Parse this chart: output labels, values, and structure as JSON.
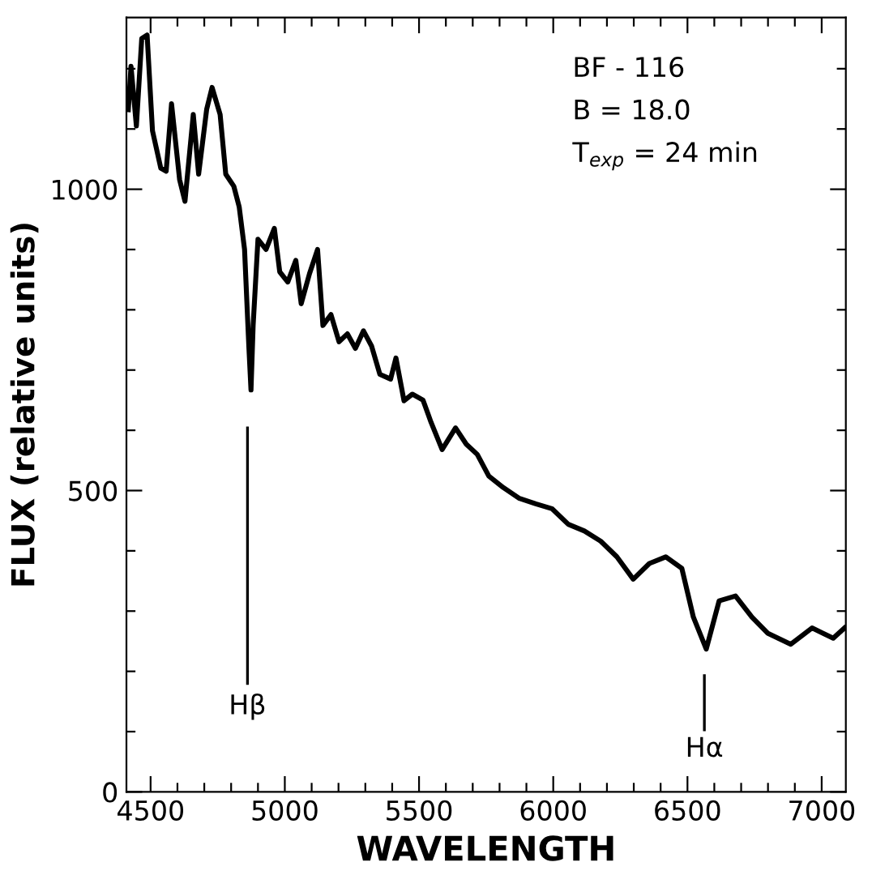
{
  "chart_data": {
    "type": "line",
    "xlabel": "WAVELENGTH",
    "ylabel": "FLUX (relative units)",
    "x": [
      4417,
      4427,
      4447,
      4467,
      4487,
      4507,
      4538,
      4558,
      4578,
      4608,
      4628,
      4659,
      4679,
      4709,
      4729,
      4759,
      4780,
      4810,
      4830,
      4850,
      4866,
      4874,
      4882,
      4900,
      4930,
      4961,
      4981,
      5011,
      5041,
      5061,
      5092,
      5122,
      5142,
      5172,
      5202,
      5233,
      5263,
      5293,
      5323,
      5354,
      5394,
      5414,
      5444,
      5475,
      5515,
      5545,
      5586,
      5636,
      5676,
      5717,
      5760,
      5814,
      5874,
      5935,
      5995,
      6056,
      6116,
      6177,
      6237,
      6298,
      6358,
      6419,
      6479,
      6522,
      6570,
      6618,
      6679,
      6740,
      6800,
      6885,
      6964,
      7043,
      7085
    ],
    "series": [
      {
        "color": "#000000",
        "values": [
          1132,
          1204,
          1105,
          1250,
          1256,
          1097,
          1035,
          1030,
          1142,
          1016,
          980,
          1124,
          1025,
          1133,
          1169,
          1124,
          1025,
          1005,
          971,
          900,
          739,
          667,
          774,
          917,
          900,
          935,
          863,
          846,
          882,
          810,
          860,
          900,
          774,
          792,
          747,
          760,
          736,
          765,
          740,
          693,
          685,
          720,
          649,
          660,
          650,
          613,
          568,
          604,
          577,
          560,
          524,
          505,
          487,
          478,
          470,
          444,
          433,
          416,
          390,
          353,
          379,
          390,
          371,
          290,
          237,
          317,
          325,
          290,
          263,
          245,
          272,
          255,
          272
        ]
      }
    ],
    "xlim": [
      4410,
      7090
    ],
    "ylim": [
      0,
      1285
    ],
    "xticks": [
      4500,
      {
        "value": 4600,
        "label": null
      },
      {
        "value": 4700,
        "label": null
      },
      {
        "value": 4800,
        "label": null
      },
      {
        "value": 4900,
        "label": null
      },
      5000,
      {
        "value": 5100,
        "label": null
      },
      {
        "value": 5200,
        "label": null
      },
      {
        "value": 5300,
        "label": null
      },
      {
        "value": 5400,
        "label": null
      },
      5500,
      {
        "value": 5600,
        "label": null
      },
      {
        "value": 5700,
        "label": null
      },
      {
        "value": 5800,
        "label": null
      },
      {
        "value": 5900,
        "label": null
      },
      6000,
      {
        "value": 6100,
        "label": null
      },
      {
        "value": 6200,
        "label": null
      },
      {
        "value": 6300,
        "label": null
      },
      {
        "value": 6400,
        "label": null
      },
      6500,
      {
        "value": 6600,
        "label": null
      },
      {
        "value": 6700,
        "label": null
      },
      {
        "value": 6800,
        "label": null
      },
      {
        "value": 6900,
        "label": null
      },
      7000
    ],
    "yticks": [
      0,
      {
        "value": 100,
        "label": null
      },
      {
        "value": 200,
        "label": null
      },
      {
        "value": 300,
        "label": null
      },
      {
        "value": 400,
        "label": null
      },
      500,
      {
        "value": 600,
        "label": null
      },
      {
        "value": 700,
        "label": null
      },
      {
        "value": 800,
        "label": null
      },
      {
        "value": 900,
        "label": null
      },
      1000,
      {
        "value": 1100,
        "label": null
      },
      {
        "value": 1200,
        "label": null
      }
    ],
    "annotations": [
      "BF - 116",
      "B = 18.0",
      "T$_{exp}$ = 24 min"
    ],
    "ref_lines": [
      {
        "axis": "x",
        "value": 4861,
        "label": "Hβ"
      },
      {
        "axis": "x",
        "value": 6563,
        "label": "Hα"
      }
    ],
    "grid": false,
    "legend": false,
    "marker": "none",
    "line_style": "solid"
  }
}
